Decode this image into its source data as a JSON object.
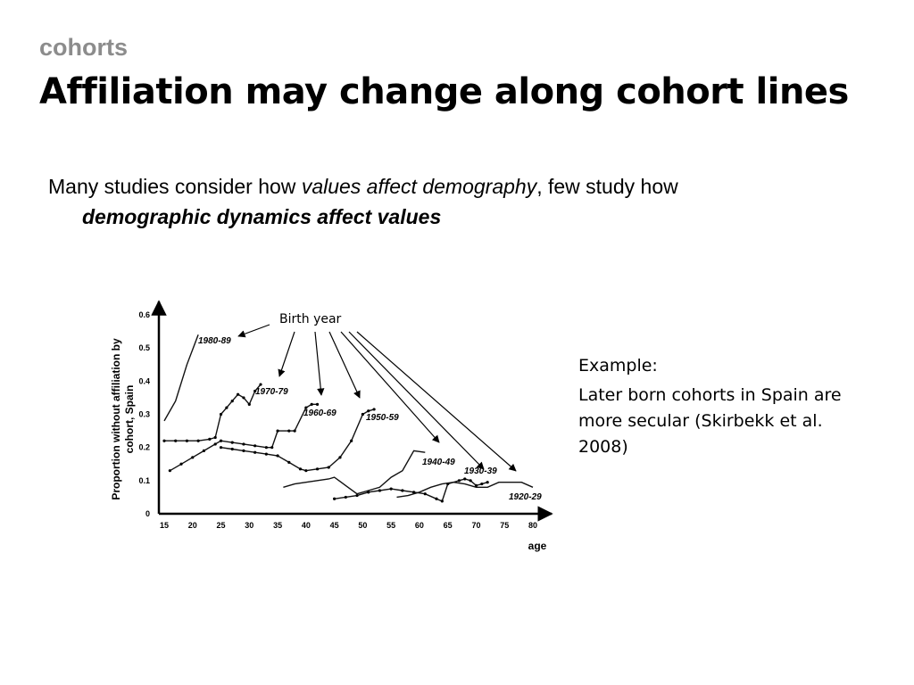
{
  "slide": {
    "kicker": "cohorts",
    "title": "Affiliation may change along cohort lines",
    "body": {
      "part1": "Many studies consider how ",
      "part2": "values affect demography",
      "part3": ", few study how",
      "part4": "demographic dynamics affect values"
    },
    "side": {
      "example": "Example:",
      "text": "Later born cohorts in Spain are more secular (Skirbekk et al. 2008)"
    }
  },
  "chart_data": {
    "type": "line",
    "xlabel": "age",
    "ylabel": "Proportion without affiliation by cohort, Spain",
    "annotation": "Birth year",
    "x_ticks": [
      15,
      20,
      25,
      30,
      35,
      40,
      45,
      50,
      55,
      60,
      65,
      70,
      75,
      80
    ],
    "y_ticks": [
      "0",
      "0.1",
      "0.2",
      "0.3",
      "0.4",
      "0.5",
      "0.6"
    ],
    "xlim": [
      15,
      80
    ],
    "ylim": [
      0,
      0.6
    ],
    "series": [
      {
        "name": "1980-89",
        "points": [
          [
            15,
            0.28
          ],
          [
            17,
            0.34
          ],
          [
            19,
            0.45
          ],
          [
            21,
            0.54
          ]
        ]
      },
      {
        "name": "1970-79",
        "points": [
          [
            15,
            0.22
          ],
          [
            17,
            0.22
          ],
          [
            19,
            0.22
          ],
          [
            21,
            0.22
          ],
          [
            23,
            0.225
          ],
          [
            24,
            0.23
          ],
          [
            25,
            0.3
          ],
          [
            26,
            0.32
          ],
          [
            27,
            0.34
          ],
          [
            28,
            0.36
          ],
          [
            29,
            0.35
          ],
          [
            30,
            0.33
          ],
          [
            31,
            0.37
          ],
          [
            32,
            0.39
          ]
        ]
      },
      {
        "name": "1960-69",
        "points": [
          [
            16,
            0.13
          ],
          [
            18,
            0.15
          ],
          [
            20,
            0.17
          ],
          [
            22,
            0.19
          ],
          [
            24,
            0.21
          ],
          [
            25,
            0.22
          ],
          [
            27,
            0.215
          ],
          [
            29,
            0.21
          ],
          [
            31,
            0.205
          ],
          [
            33,
            0.2
          ],
          [
            34,
            0.2
          ],
          [
            35,
            0.25
          ],
          [
            37,
            0.25
          ],
          [
            38,
            0.25
          ],
          [
            40,
            0.32
          ],
          [
            41,
            0.33
          ],
          [
            42,
            0.33
          ]
        ]
      },
      {
        "name": "1950-59",
        "points": [
          [
            25,
            0.2
          ],
          [
            27,
            0.195
          ],
          [
            29,
            0.19
          ],
          [
            31,
            0.185
          ],
          [
            33,
            0.18
          ],
          [
            35,
            0.175
          ],
          [
            37,
            0.155
          ],
          [
            39,
            0.135
          ],
          [
            40,
            0.13
          ],
          [
            42,
            0.135
          ],
          [
            44,
            0.14
          ],
          [
            46,
            0.17
          ],
          [
            48,
            0.22
          ],
          [
            50,
            0.3
          ],
          [
            51,
            0.31
          ],
          [
            52,
            0.315
          ]
        ]
      },
      {
        "name": "1940-49",
        "points": [
          [
            36,
            0.08
          ],
          [
            38,
            0.09
          ],
          [
            40,
            0.095
          ],
          [
            42,
            0.1
          ],
          [
            44,
            0.105
          ],
          [
            45,
            0.11
          ],
          [
            47,
            0.085
          ],
          [
            49,
            0.06
          ],
          [
            51,
            0.07
          ],
          [
            53,
            0.08
          ],
          [
            55,
            0.11
          ],
          [
            57,
            0.13
          ],
          [
            59,
            0.19
          ],
          [
            61,
            0.185
          ]
        ]
      },
      {
        "name": "1930-39",
        "points": [
          [
            45,
            0.045
          ],
          [
            47,
            0.05
          ],
          [
            49,
            0.055
          ],
          [
            51,
            0.065
          ],
          [
            53,
            0.07
          ],
          [
            55,
            0.075
          ],
          [
            57,
            0.07
          ],
          [
            59,
            0.065
          ],
          [
            61,
            0.06
          ],
          [
            63,
            0.045
          ],
          [
            64,
            0.038
          ],
          [
            65,
            0.09
          ],
          [
            67,
            0.1
          ],
          [
            68,
            0.105
          ],
          [
            69,
            0.1
          ],
          [
            70,
            0.085
          ],
          [
            71,
            0.09
          ],
          [
            72,
            0.095
          ]
        ]
      },
      {
        "name": "1920-29",
        "points": [
          [
            56,
            0.05
          ],
          [
            58,
            0.055
          ],
          [
            60,
            0.065
          ],
          [
            62,
            0.08
          ],
          [
            64,
            0.09
          ],
          [
            66,
            0.095
          ],
          [
            68,
            0.09
          ],
          [
            70,
            0.08
          ],
          [
            72,
            0.08
          ],
          [
            74,
            0.095
          ],
          [
            76,
            0.095
          ],
          [
            78,
            0.095
          ],
          [
            80,
            0.08
          ]
        ]
      }
    ]
  }
}
